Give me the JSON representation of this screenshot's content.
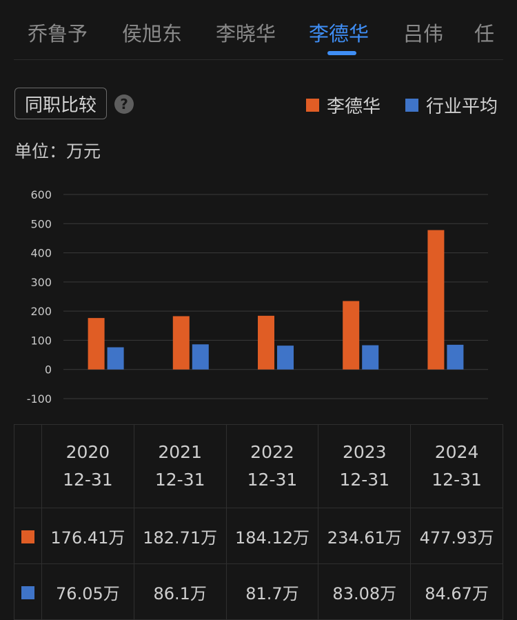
{
  "tabs": [
    "乔鲁予",
    "侯旭东",
    "李晓华",
    "李德华",
    "吕伟",
    "任"
  ],
  "active_tab": 3,
  "compare_button": "同职比较",
  "help_icon_glyph": "?",
  "unit_label": "单位：万元",
  "colors": {
    "series_a": "#e05d25",
    "series_b": "#3f74c8",
    "accent": "#3f8ef5"
  },
  "chart_data": {
    "type": "bar",
    "categories": [
      "2020\n12-31",
      "2021\n12-31",
      "2022\n12-31",
      "2023\n12-31",
      "2024\n12-31"
    ],
    "series": [
      {
        "name": "李德华",
        "values": [
          176.41,
          182.71,
          184.12,
          234.61,
          477.93
        ],
        "color": "#e05d25"
      },
      {
        "name": "行业平均",
        "values": [
          76.05,
          86.1,
          81.7,
          83.08,
          84.67
        ],
        "color": "#3f74c8"
      }
    ],
    "ylim": [
      -100,
      600
    ],
    "yticks": [
      600,
      500,
      400,
      300,
      200,
      100,
      0,
      -100
    ],
    "legend": "top-right",
    "grid": true
  },
  "table": {
    "headers": [
      {
        "year": "2020",
        "date": "12-31"
      },
      {
        "year": "2021",
        "date": "12-31"
      },
      {
        "year": "2022",
        "date": "12-31"
      },
      {
        "year": "2023",
        "date": "12-31"
      },
      {
        "year": "2024",
        "date": "12-31"
      }
    ],
    "rows": [
      {
        "values": [
          "176.41万",
          "182.71万",
          "184.12万",
          "234.61万",
          "477.93万"
        ]
      },
      {
        "values": [
          "76.05万",
          "86.1万",
          "81.7万",
          "83.08万",
          "84.67万"
        ]
      }
    ]
  }
}
